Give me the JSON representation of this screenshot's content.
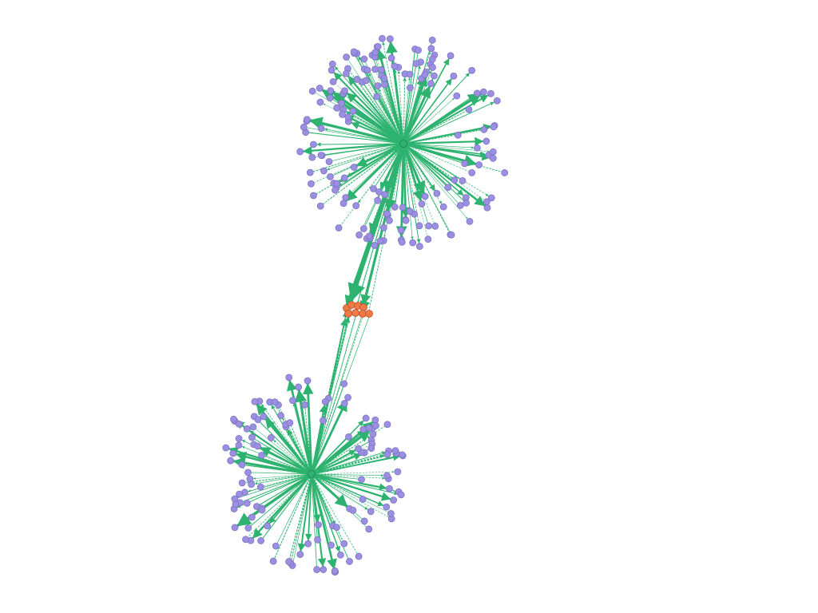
{
  "colors": {
    "background": "#ffffff",
    "edge": "#2db36f",
    "leaf_node": "#9a8fe0",
    "leaf_node_stroke": "#7d73c4",
    "bridge_node": "#f07a45",
    "bridge_node_stroke": "#b8512a",
    "hub_node": "#2db36f",
    "hub_node_stroke": "#1f7f4f"
  },
  "graph": {
    "type": "network",
    "hubs": [
      {
        "id": "hub-top",
        "leaf_count": 160,
        "label": ""
      },
      {
        "id": "hub-bottom",
        "leaf_count": 120,
        "label": ""
      }
    ],
    "bridge_cluster": {
      "id": "bridge-cluster",
      "node_count": 8
    }
  }
}
